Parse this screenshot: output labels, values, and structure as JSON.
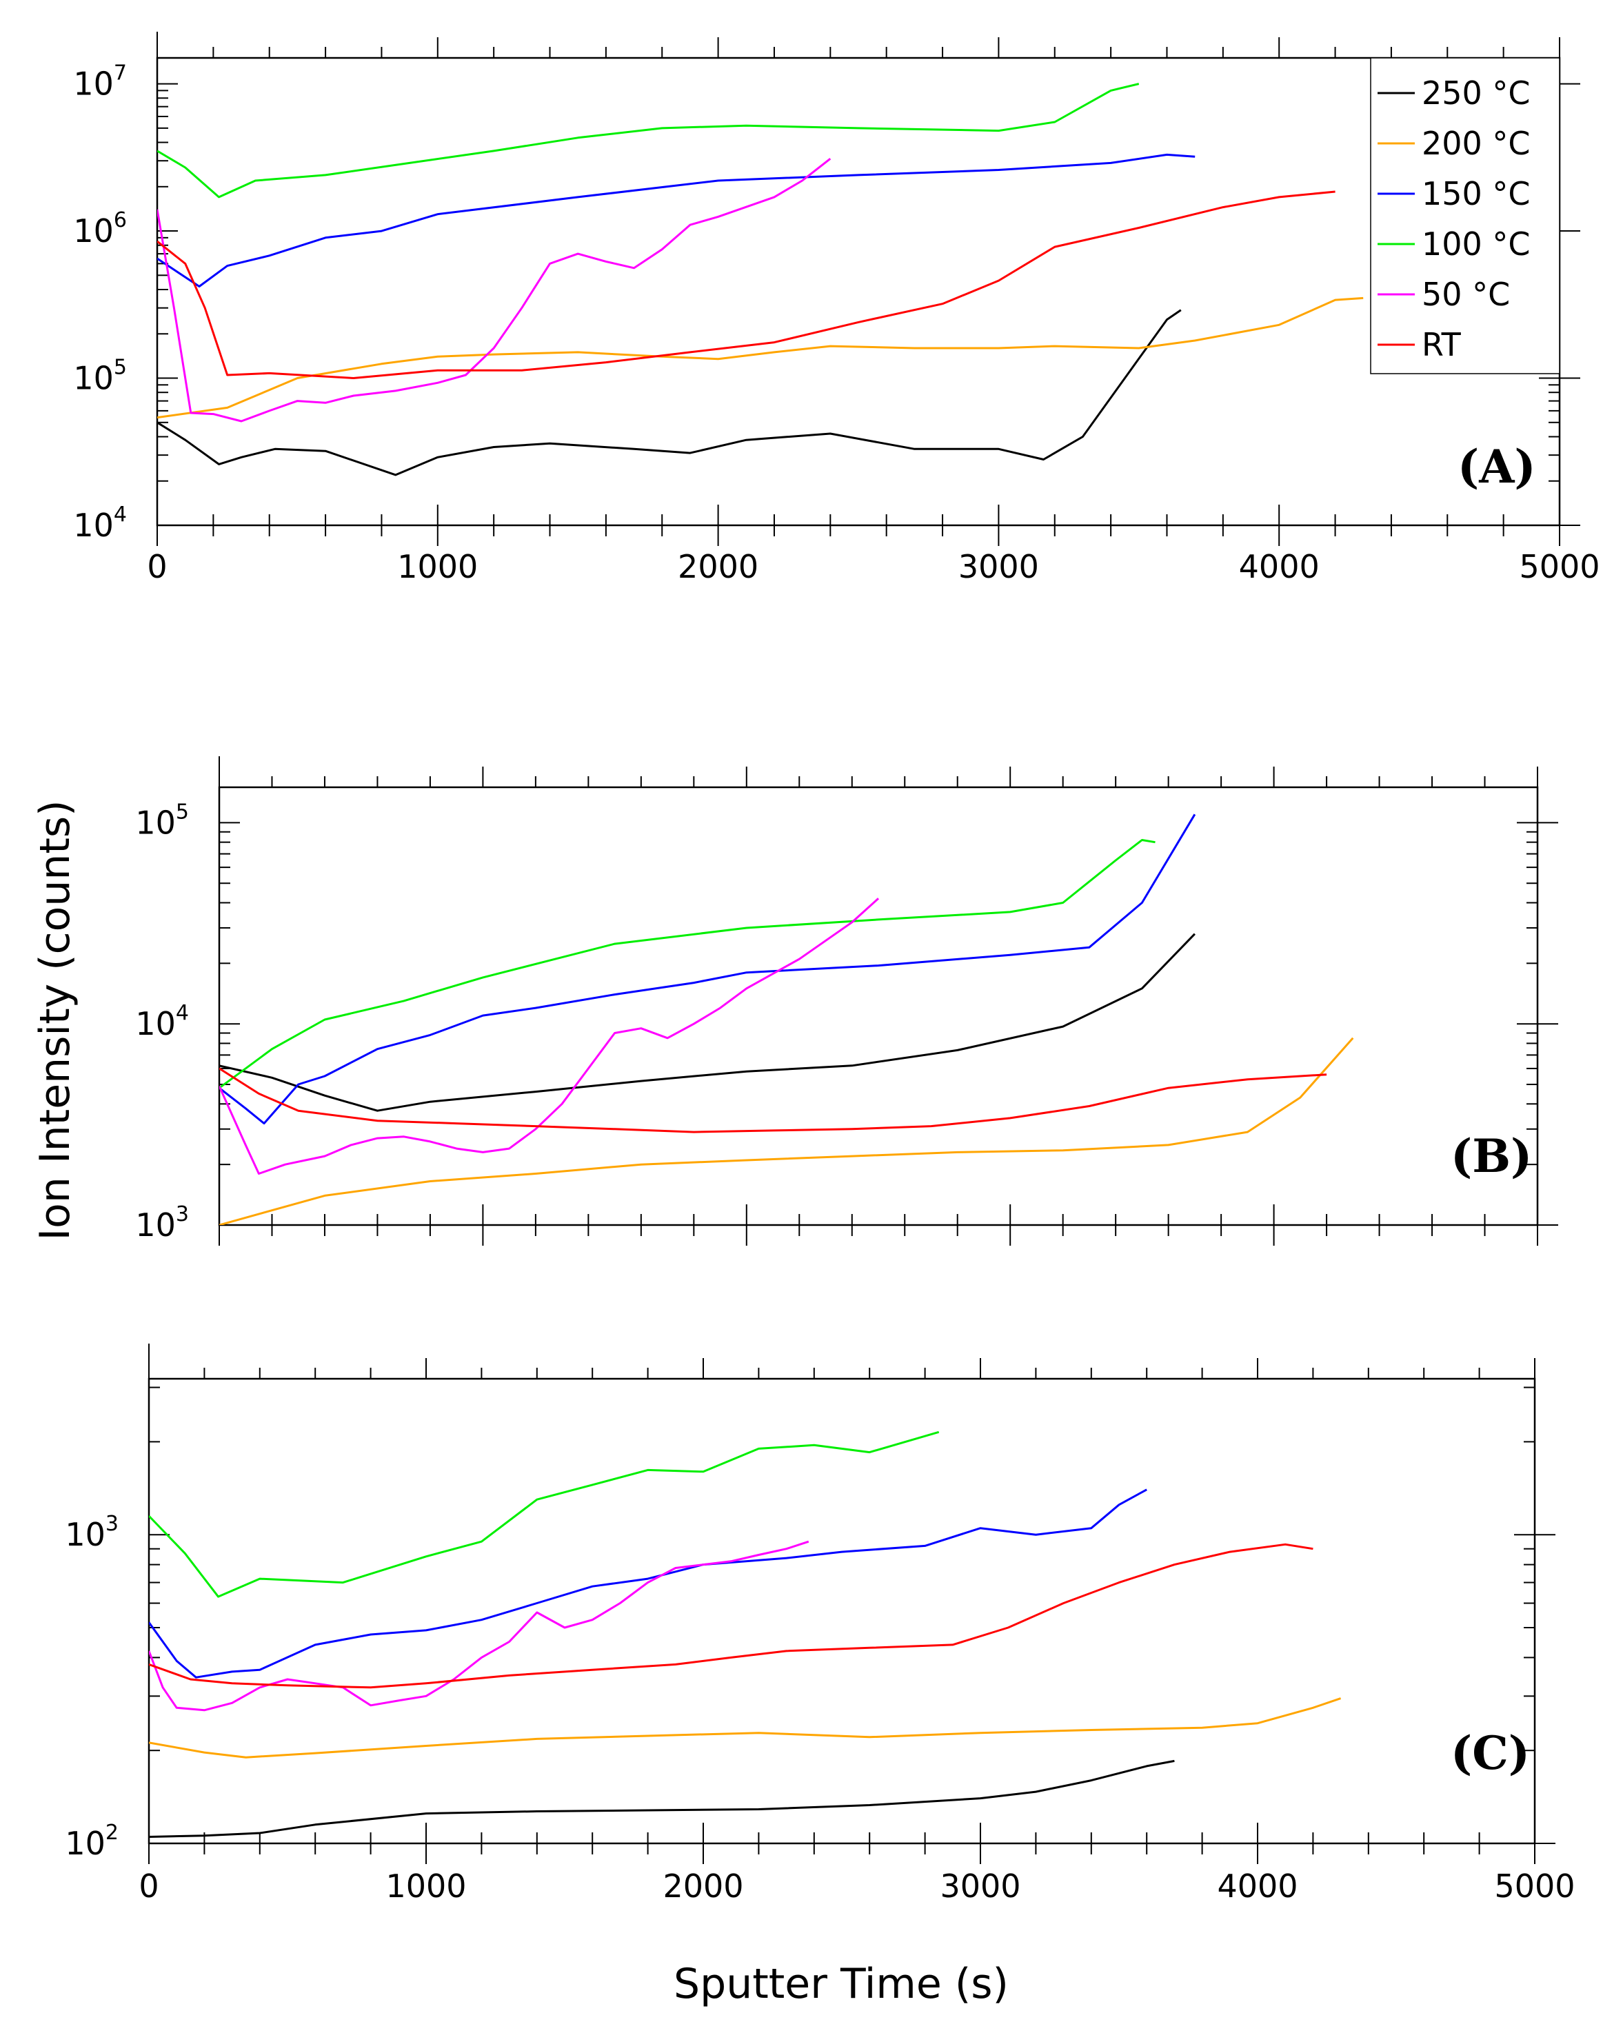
{
  "chart_data": [
    {
      "type": "line",
      "panel": "(A)",
      "yscale": "log",
      "xlim": [
        0,
        5000
      ],
      "ylim": [
        10000,
        15000000
      ],
      "xticks": [
        "0",
        "1000",
        "2000",
        "3000",
        "4000",
        "5000"
      ],
      "yticks": [
        "10^4",
        "10^5",
        "10^6",
        "10^7"
      ],
      "legend": {
        "placement": "top-right"
      },
      "series": [
        {
          "name": "250 °C",
          "color": "#000000",
          "x": [
            0,
            100,
            220,
            300,
            420,
            600,
            850,
            1000,
            1200,
            1400,
            1700,
            1900,
            2100,
            2400,
            2700,
            3000,
            3160,
            3300,
            3450,
            3600,
            3650
          ],
          "y": [
            50000,
            38000,
            26000,
            29000,
            33000,
            32000,
            22000,
            29000,
            34000,
            36000,
            33000,
            31000,
            38000,
            42000,
            33000,
            33000,
            28000,
            40000,
            100000,
            250000,
            290000
          ]
        },
        {
          "name": "200 °C",
          "color": "#FFA500",
          "x": [
            0,
            250,
            500,
            800,
            1000,
            1200,
            1500,
            1800,
            2000,
            2200,
            2400,
            2700,
            3000,
            3200,
            3500,
            3700,
            4000,
            4200,
            4300
          ],
          "y": [
            54000,
            63000,
            100000,
            125000,
            140000,
            145000,
            150000,
            140000,
            135000,
            150000,
            165000,
            160000,
            160000,
            165000,
            160000,
            180000,
            230000,
            340000,
            350000
          ]
        },
        {
          "name": "150 °C",
          "color": "#0000FF",
          "x": [
            0,
            150,
            250,
            400,
            600,
            800,
            1000,
            1500,
            2000,
            2500,
            3000,
            3400,
            3600,
            3700
          ],
          "y": [
            650000,
            420000,
            580000,
            680000,
            900000,
            1000000,
            1300000,
            1700000,
            2200000,
            2400000,
            2600000,
            2900000,
            3300000,
            3200000
          ]
        },
        {
          "name": "100 °C",
          "color": "#00EE00",
          "x": [
            0,
            100,
            220,
            350,
            600,
            900,
            1200,
            1500,
            1800,
            2100,
            2500,
            3000,
            3200,
            3400,
            3500
          ],
          "y": [
            3500000,
            2700000,
            1700000,
            2200000,
            2400000,
            2900000,
            3500000,
            4300000,
            5000000,
            5200000,
            5000000,
            4800000,
            5500000,
            9000000,
            10000000
          ]
        },
        {
          "name": "50 °C",
          "color": "#FF00FF",
          "x": [
            0,
            60,
            120,
            200,
            300,
            400,
            500,
            600,
            700,
            850,
            1000,
            1100,
            1200,
            1300,
            1400,
            1500,
            1600,
            1700,
            1800,
            1900,
            2000,
            2200,
            2300,
            2400
          ],
          "y": [
            1400000,
            300000,
            58000,
            57000,
            51000,
            60000,
            70000,
            68000,
            76000,
            82000,
            93000,
            105000,
            160000,
            300000,
            600000,
            700000,
            620000,
            560000,
            750000,
            1100000,
            1250000,
            1700000,
            2200000,
            3100000
          ]
        },
        {
          "name": "RT",
          "color": "#FF0000",
          "x": [
            0,
            100,
            170,
            250,
            400,
            700,
            1000,
            1300,
            1600,
            1900,
            2200,
            2500,
            2800,
            3000,
            3200,
            3500,
            3800,
            4000,
            4200
          ],
          "y": [
            850000,
            600000,
            300000,
            105000,
            108000,
            100000,
            113000,
            113000,
            128000,
            150000,
            175000,
            240000,
            320000,
            460000,
            780000,
            1050000,
            1450000,
            1700000,
            1850000
          ]
        }
      ]
    },
    {
      "type": "line",
      "panel": "(B)",
      "yscale": "log",
      "xlim": [
        0,
        5000
      ],
      "ylim": [
        1000,
        150000
      ],
      "yticks": [
        "10^3",
        "10^4",
        "10^5"
      ],
      "ylabel": "Ion Intensity (counts)",
      "series": [
        {
          "name": "250 °C",
          "color": "#000000",
          "x": [
            0,
            200,
            400,
            600,
            800,
            1200,
            1600,
            2000,
            2400,
            2800,
            3200,
            3500,
            3700
          ],
          "y": [
            6200,
            5400,
            4400,
            3700,
            4100,
            4600,
            5200,
            5800,
            6200,
            7400,
            9700,
            15000,
            28000
          ]
        },
        {
          "name": "200 °C",
          "color": "#FFA500",
          "x": [
            0,
            400,
            800,
            1200,
            1600,
            2000,
            2400,
            2800,
            3200,
            3600,
            3900,
            4100,
            4300
          ],
          "y": [
            1000,
            1400,
            1650,
            1800,
            2000,
            2100,
            2200,
            2300,
            2350,
            2500,
            2900,
            4300,
            8500
          ]
        },
        {
          "name": "150 °C",
          "color": "#0000FF",
          "x": [
            0,
            100,
            170,
            300,
            400,
            600,
            800,
            1000,
            1200,
            1500,
            1800,
            2000,
            2500,
            3000,
            3300,
            3500,
            3700
          ],
          "y": [
            4800,
            3800,
            3200,
            5000,
            5500,
            7500,
            8800,
            11000,
            12000,
            14000,
            16000,
            18000,
            19500,
            22000,
            24000,
            40000,
            110000
          ]
        },
        {
          "name": "100 °C",
          "color": "#00EE00",
          "x": [
            0,
            200,
            400,
            700,
            1000,
            1500,
            2000,
            2500,
            3000,
            3200,
            3400,
            3500,
            3550
          ],
          "y": [
            4800,
            7500,
            10500,
            13000,
            17000,
            25000,
            30000,
            33000,
            36000,
            40000,
            65000,
            82000,
            80000
          ]
        },
        {
          "name": "50 °C",
          "color": "#FF00FF",
          "x": [
            0,
            100,
            150,
            250,
            400,
            500,
            600,
            700,
            800,
            900,
            1000,
            1100,
            1200,
            1300,
            1400,
            1500,
            1600,
            1700,
            1800,
            1900,
            2000,
            2200,
            2400,
            2500
          ],
          "y": [
            4900,
            2500,
            1800,
            2000,
            2200,
            2500,
            2700,
            2750,
            2600,
            2400,
            2300,
            2400,
            3000,
            4000,
            6000,
            9000,
            9500,
            8500,
            10000,
            12000,
            15000,
            21000,
            32000,
            42000
          ]
        },
        {
          "name": "RT",
          "color": "#FF0000",
          "x": [
            0,
            150,
            300,
            600,
            900,
            1200,
            1500,
            1800,
            2100,
            2400,
            2700,
            3000,
            3300,
            3600,
            3900,
            4200
          ],
          "y": [
            6000,
            4500,
            3700,
            3300,
            3200,
            3100,
            3000,
            2900,
            2950,
            3000,
            3100,
            3400,
            3900,
            4800,
            5300,
            5600
          ]
        }
      ]
    },
    {
      "type": "line",
      "panel": "(C)",
      "yscale": "log",
      "xlim": [
        0,
        5000
      ],
      "ylim": [
        100,
        3200
      ],
      "xticks": [
        "0",
        "1000",
        "2000",
        "3000",
        "4000",
        "5000"
      ],
      "yticks": [
        "10^2",
        "10^3"
      ],
      "xlabel": "Sputter Time (s)",
      "series": [
        {
          "name": "250 °C",
          "color": "#000000",
          "x": [
            0,
            200,
            400,
            600,
            1000,
            1400,
            1800,
            2200,
            2600,
            3000,
            3200,
            3400,
            3600,
            3700
          ],
          "y": [
            105,
            106,
            108,
            115,
            125,
            127,
            128,
            129,
            133,
            140,
            147,
            160,
            178,
            185
          ]
        },
        {
          "name": "200 °C",
          "color": "#FFA500",
          "x": [
            0,
            200,
            350,
            600,
            1000,
            1400,
            1800,
            2200,
            2600,
            3000,
            3400,
            3800,
            4000,
            4200,
            4300
          ],
          "y": [
            212,
            197,
            190,
            196,
            207,
            218,
            223,
            228,
            221,
            228,
            233,
            237,
            245,
            275,
            295
          ]
        },
        {
          "name": "150 °C",
          "color": "#0000FF",
          "x": [
            0,
            100,
            170,
            300,
            400,
            600,
            800,
            1000,
            1200,
            1400,
            1600,
            1800,
            2000,
            2300,
            2500,
            2800,
            3000,
            3200,
            3400,
            3500,
            3600
          ],
          "y": [
            520,
            390,
            345,
            360,
            365,
            440,
            475,
            490,
            530,
            600,
            680,
            720,
            800,
            840,
            880,
            920,
            1050,
            1000,
            1050,
            1250,
            1400
          ]
        },
        {
          "name": "100 °C",
          "color": "#00EE00",
          "x": [
            0,
            130,
            250,
            400,
            700,
            1000,
            1200,
            1400,
            1600,
            1800,
            2000,
            2200,
            2400,
            2600,
            2850
          ],
          "y": [
            1150,
            870,
            630,
            720,
            700,
            850,
            950,
            1300,
            1450,
            1620,
            1600,
            1900,
            1950,
            1850,
            2150
          ]
        },
        {
          "name": "50 °C",
          "color": "#FF00FF",
          "x": [
            0,
            50,
            100,
            200,
            300,
            400,
            500,
            600,
            700,
            800,
            900,
            1000,
            1100,
            1200,
            1300,
            1400,
            1500,
            1600,
            1700,
            1800,
            1900,
            2000,
            2100,
            2200,
            2300,
            2380
          ],
          "y": [
            420,
            320,
            275,
            270,
            285,
            320,
            340,
            330,
            320,
            280,
            290,
            300,
            340,
            400,
            450,
            560,
            500,
            530,
            600,
            700,
            780,
            800,
            820,
            860,
            900,
            950
          ]
        },
        {
          "name": "RT",
          "color": "#FF0000",
          "x": [
            0,
            150,
            300,
            500,
            800,
            1000,
            1300,
            1600,
            1900,
            2100,
            2300,
            2600,
            2900,
            3100,
            3300,
            3500,
            3700,
            3900,
            4100,
            4200
          ],
          "y": [
            380,
            340,
            330,
            325,
            320,
            330,
            350,
            365,
            380,
            400,
            420,
            430,
            440,
            500,
            600,
            700,
            800,
            880,
            930,
            900
          ]
        }
      ]
    }
  ]
}
